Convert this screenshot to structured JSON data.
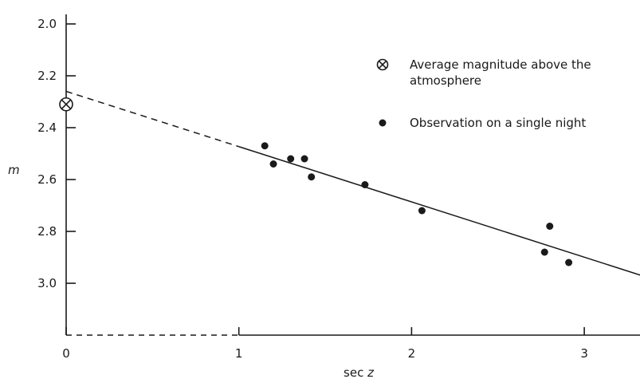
{
  "chart_data": {
    "type": "scatter",
    "title": "",
    "xlabel": {
      "prefix": "sec ",
      "var": "z"
    },
    "ylabel": "m",
    "xlim": [
      0,
      3.3
    ],
    "ylim": [
      3.2,
      2.0
    ],
    "y_inverted": true,
    "grid": false,
    "legend_placement": "top-right",
    "x_ticks": [
      {
        "value": 0,
        "label": "0"
      },
      {
        "value": 1,
        "label": "1"
      },
      {
        "value": 2,
        "label": "2"
      },
      {
        "value": 3,
        "label": "3"
      }
    ],
    "y_ticks": [
      {
        "value": 2.0,
        "label": "2.0"
      },
      {
        "value": 2.2,
        "label": "2.2"
      },
      {
        "value": 2.4,
        "label": "2.4"
      },
      {
        "value": 2.6,
        "label": "2.6"
      },
      {
        "value": 2.8,
        "label": "2.8"
      },
      {
        "value": 3.0,
        "label": "3.0"
      }
    ],
    "series": [
      {
        "name": "Observation on a single night",
        "marker": "filled-dot",
        "points": [
          {
            "x": 1.15,
            "y": 2.47
          },
          {
            "x": 1.2,
            "y": 2.54
          },
          {
            "x": 1.3,
            "y": 2.52
          },
          {
            "x": 1.38,
            "y": 2.52
          },
          {
            "x": 1.42,
            "y": 2.59
          },
          {
            "x": 1.73,
            "y": 2.62
          },
          {
            "x": 2.06,
            "y": 2.72
          },
          {
            "x": 2.77,
            "y": 2.88
          },
          {
            "x": 2.8,
            "y": 2.78
          },
          {
            "x": 2.91,
            "y": 2.92
          }
        ]
      },
      {
        "name": "Average magnitude above the atmosphere",
        "name_lines": [
          "Average magnitude above the",
          "atmosphere"
        ],
        "marker": "circled-cross",
        "points": [
          {
            "x": 0,
            "y": 2.31
          }
        ]
      }
    ],
    "fit_line": {
      "y_at_x0": 2.26,
      "slope": 0.213,
      "solid_from_x": 1.0,
      "x_end": 3.3
    },
    "baseline": {
      "y": 3.2,
      "dashed_from_x": 0,
      "dashed_to_x": 1,
      "solid_to_x": 3.3
    }
  }
}
